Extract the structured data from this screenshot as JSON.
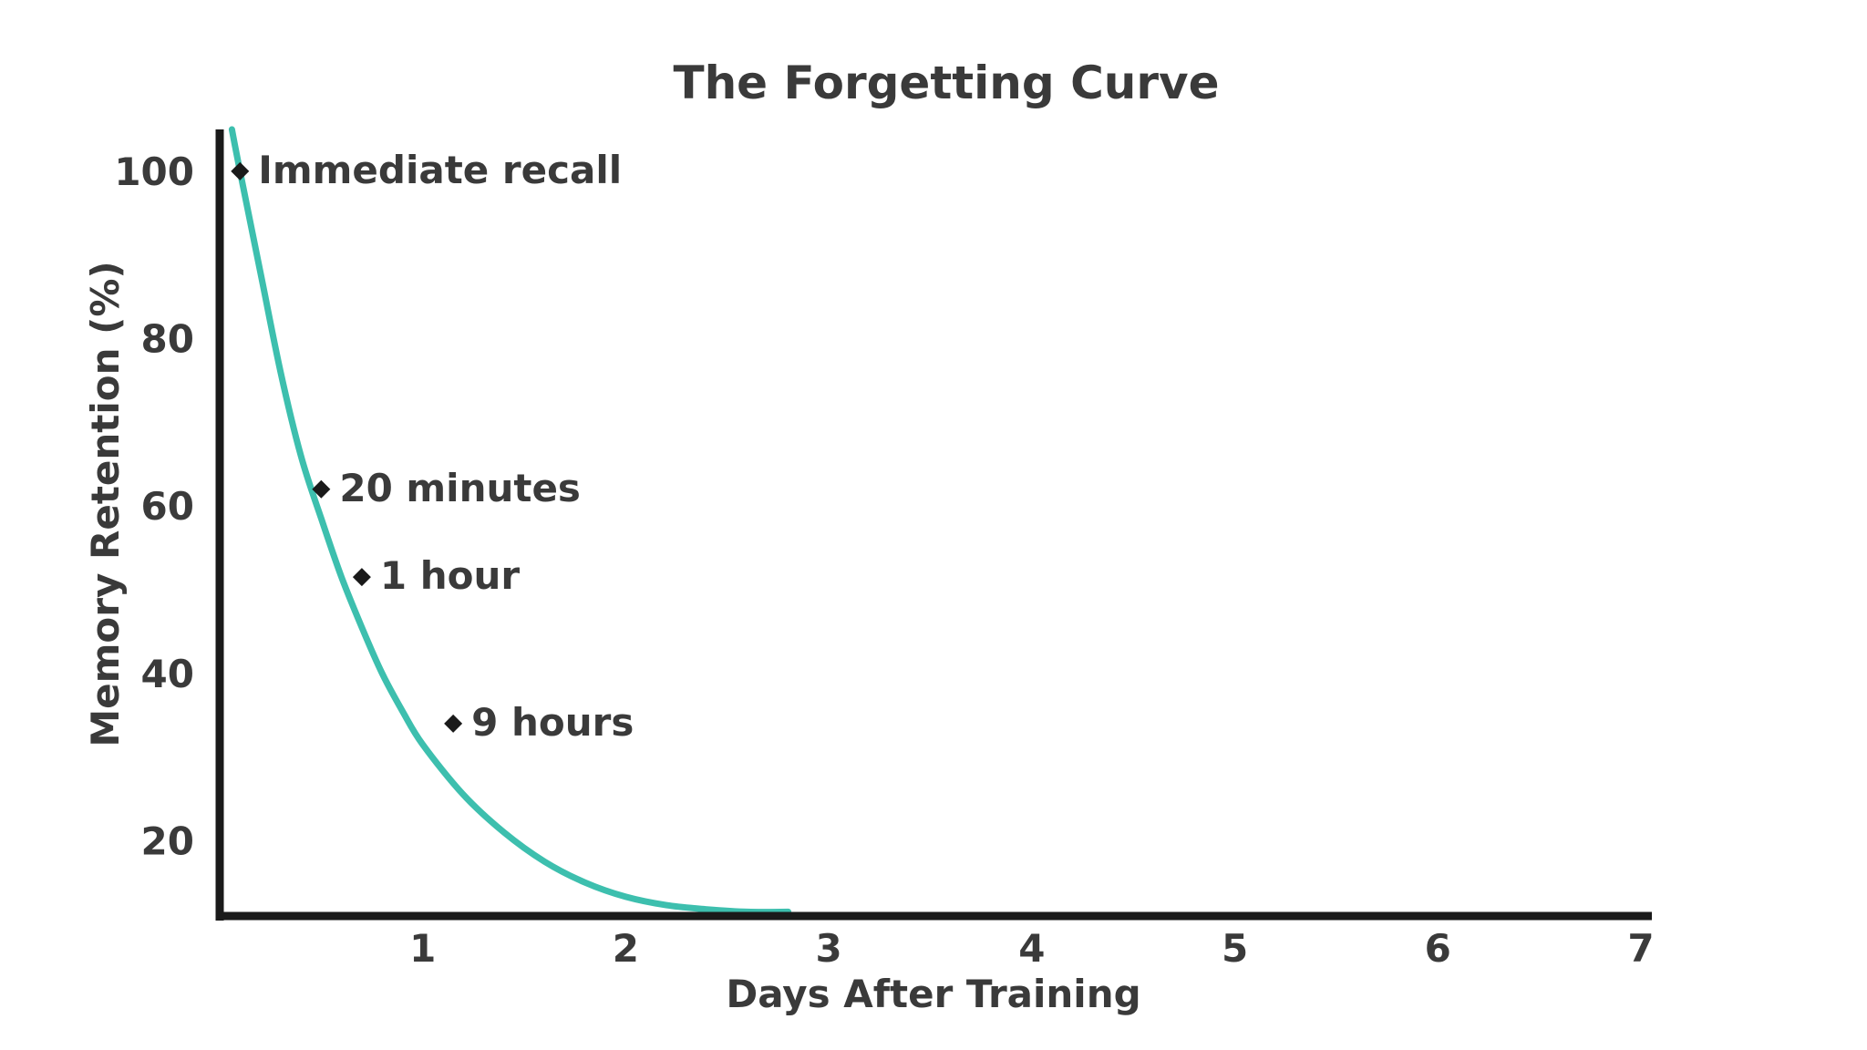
{
  "chart_data": {
    "type": "line",
    "title": "The Forgetting Curve",
    "xlabel": "Days After Training",
    "ylabel": "Memory Retention (%)",
    "xlim": [
      0,
      7
    ],
    "ylim": [
      11,
      105
    ],
    "x_ticks": [
      1,
      2,
      3,
      4,
      5,
      6,
      7
    ],
    "y_ticks": [
      20,
      40,
      60,
      80,
      100
    ],
    "grid": false,
    "legend": "none",
    "series": [
      {
        "color": "#3dbfae",
        "x": [
          0.06,
          0.1,
          0.2,
          0.3,
          0.4,
          0.5,
          0.6,
          0.7,
          0.8,
          0.9,
          1.0,
          1.2,
          1.4,
          1.6,
          1.8,
          2.0,
          2.2,
          2.4,
          2.6,
          2.8
        ],
        "y": [
          105,
          100,
          88,
          76,
          66,
          58.5,
          51.5,
          45.5,
          40,
          35.5,
          31.5,
          25.5,
          21,
          17.5,
          15,
          13.3,
          12.3,
          11.8,
          11.5,
          11.5
        ]
      }
    ],
    "annotations": [
      {
        "label": "Immediate recall",
        "x": 0.1,
        "y": 100
      },
      {
        "label": "20 minutes",
        "x": 0.5,
        "y": 62
      },
      {
        "label": "1 hour",
        "x": 0.7,
        "y": 51.5
      },
      {
        "label": "9 hours",
        "x": 1.15,
        "y": 34
      }
    ],
    "colors": {
      "curve": "#3dbfae",
      "axis": "#1a1a1a",
      "marker": "#1a1a1a",
      "text": "#3a3a3a"
    }
  }
}
